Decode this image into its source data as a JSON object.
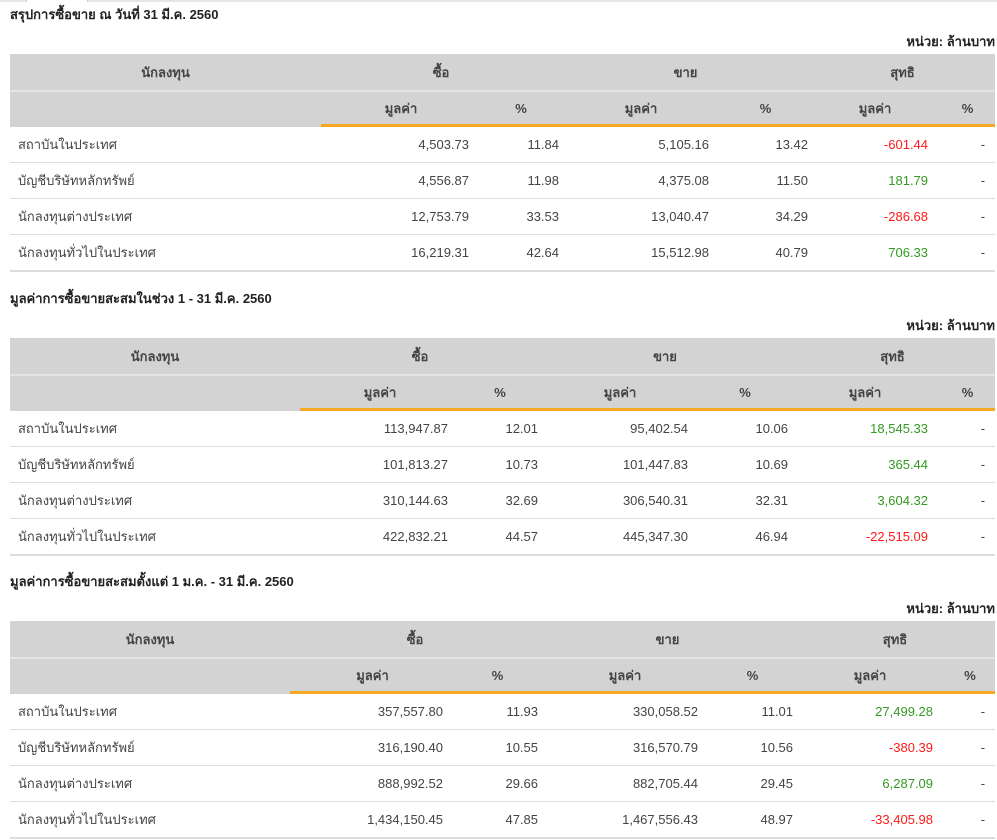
{
  "unit_label": "หน่วย: ล้านบาท",
  "headers": {
    "investor": "นักลงทุน",
    "buy": "ซื้อ",
    "sell": "ขาย",
    "net": "สุทธิ",
    "value": "มูลค่า",
    "percent": "%"
  },
  "colors": {
    "negative": "#ff1a1a",
    "positive": "#339922",
    "accent": "#f7a823"
  },
  "tables": [
    {
      "title": "สรุปการซื้อขาย ณ วันที่ 31 มี.ค. 2560",
      "rows": [
        {
          "name": "สถาบันในประเทศ",
          "buy": "4,503.73",
          "buy_pct": "11.84",
          "sell": "5,105.16",
          "sell_pct": "13.42",
          "net": "-601.44",
          "net_pct": "-"
        },
        {
          "name": "บัญชีบริษัทหลักทรัพย์",
          "buy": "4,556.87",
          "buy_pct": "11.98",
          "sell": "4,375.08",
          "sell_pct": "11.50",
          "net": "181.79",
          "net_pct": "-"
        },
        {
          "name": "นักลงทุนต่างประเทศ",
          "buy": "12,753.79",
          "buy_pct": "33.53",
          "sell": "13,040.47",
          "sell_pct": "34.29",
          "net": "-286.68",
          "net_pct": "-"
        },
        {
          "name": "นักลงทุนทั่วไปในประเทศ",
          "buy": "16,219.31",
          "buy_pct": "42.64",
          "sell": "15,512.98",
          "sell_pct": "40.79",
          "net": "706.33",
          "net_pct": "-"
        }
      ]
    },
    {
      "title": "มูลค่าการซื้อขายสะสมในช่วง 1 - 31 มี.ค. 2560",
      "rows": [
        {
          "name": "สถาบันในประเทศ",
          "buy": "113,947.87",
          "buy_pct": "12.01",
          "sell": "95,402.54",
          "sell_pct": "10.06",
          "net": "18,545.33",
          "net_pct": "-"
        },
        {
          "name": "บัญชีบริษัทหลักทรัพย์",
          "buy": "101,813.27",
          "buy_pct": "10.73",
          "sell": "101,447.83",
          "sell_pct": "10.69",
          "net": "365.44",
          "net_pct": "-"
        },
        {
          "name": "นักลงทุนต่างประเทศ",
          "buy": "310,144.63",
          "buy_pct": "32.69",
          "sell": "306,540.31",
          "sell_pct": "32.31",
          "net": "3,604.32",
          "net_pct": "-"
        },
        {
          "name": "นักลงทุนทั่วไปในประเทศ",
          "buy": "422,832.21",
          "buy_pct": "44.57",
          "sell": "445,347.30",
          "sell_pct": "46.94",
          "net": "-22,515.09",
          "net_pct": "-"
        }
      ]
    },
    {
      "title": "มูลค่าการซื้อขายสะสมตั้งแต่ 1 ม.ค. - 31 มี.ค. 2560",
      "rows": [
        {
          "name": "สถาบันในประเทศ",
          "buy": "357,557.80",
          "buy_pct": "11.93",
          "sell": "330,058.52",
          "sell_pct": "11.01",
          "net": "27,499.28",
          "net_pct": "-"
        },
        {
          "name": "บัญชีบริษัทหลักทรัพย์",
          "buy": "316,190.40",
          "buy_pct": "10.55",
          "sell": "316,570.79",
          "sell_pct": "10.56",
          "net": "-380.39",
          "net_pct": "-"
        },
        {
          "name": "นักลงทุนต่างประเทศ",
          "buy": "888,992.52",
          "buy_pct": "29.66",
          "sell": "882,705.44",
          "sell_pct": "29.45",
          "net": "6,287.09",
          "net_pct": "-"
        },
        {
          "name": "นักลงทุนทั่วไปในประเทศ",
          "buy": "1,434,150.45",
          "buy_pct": "47.85",
          "sell": "1,467,556.43",
          "sell_pct": "48.97",
          "net": "-33,405.98",
          "net_pct": "-"
        }
      ]
    }
  ]
}
